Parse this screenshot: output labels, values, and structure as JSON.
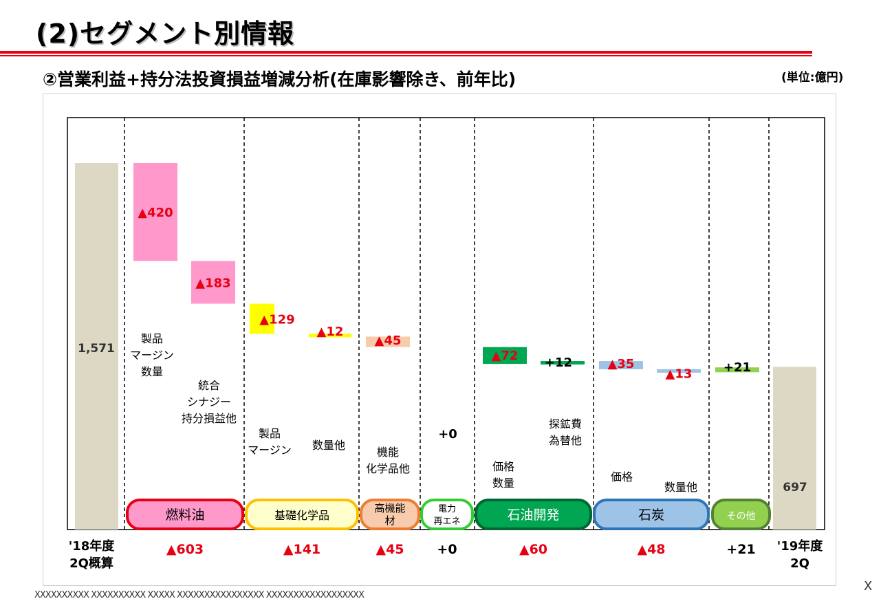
{
  "page": {
    "title": "(2)セグメント別情報",
    "subtitle": "②営業利益+持分法投資損益増減分析(在庫影響除き、前年比)",
    "unit": "(単位:億円)",
    "footer": "XXXXXXXXXX XXXXXXXXXX XXXXX XXXXXXXXXXXXXXXX XXXXXXXXXXXXXXXXXX",
    "page_mark": "X"
  },
  "colors": {
    "accent_red": "#e60012",
    "base_bar": "#ddd8c4",
    "fuel_oil": "#ff99cc",
    "basic_chem": "#ffff00",
    "functional": "#f8cbad",
    "petroleum_dev": "#00a651",
    "coal": "#9dc3e6",
    "other": "#92d050"
  },
  "chart_data": {
    "type": "waterfall",
    "ylim": [
      0,
      1700
    ],
    "start": {
      "label_line1": "'18年度",
      "label_line2": "2Q概算",
      "value": 1571,
      "value_label": "1,571"
    },
    "end": {
      "label_line1": "'19年度",
      "label_line2": "2Q",
      "value": 697,
      "value_label": "697"
    },
    "bars": [
      {
        "id": "fuel-margin",
        "value": -420,
        "label": "▲420",
        "color": "#ff99cc",
        "desc_lines": [
          "製品",
          "マージン",
          "数量"
        ]
      },
      {
        "id": "fuel-synergy",
        "value": -183,
        "label": "▲183",
        "color": "#ff99cc",
        "desc_lines": [
          "統合",
          "シナジー",
          "持分損益他"
        ]
      },
      {
        "id": "chem-margin",
        "value": -129,
        "label": "▲129",
        "color": "#ffff00",
        "desc_lines": [
          "製品",
          "マージン"
        ]
      },
      {
        "id": "chem-volume",
        "value": -12,
        "label": "▲12",
        "color": "#ffff00",
        "desc_lines": [
          "数量他"
        ]
      },
      {
        "id": "func-chem",
        "value": -45,
        "label": "▲45",
        "color": "#f8cbad",
        "desc_lines": [
          "機能",
          "化学品他"
        ]
      },
      {
        "id": "power",
        "value": 0,
        "label": "+0",
        "color": "#ffffff",
        "desc_lines": []
      },
      {
        "id": "petro-price",
        "value": -72,
        "label": "▲72",
        "color": "#00a651",
        "desc_lines": [
          "価格",
          "数量"
        ]
      },
      {
        "id": "petro-explore",
        "value": 12,
        "label": "+12",
        "color": "#00a651",
        "desc_lines": [
          "探鉱費",
          "為替他"
        ]
      },
      {
        "id": "coal-price",
        "value": -35,
        "label": "▲35",
        "color": "#9dc3e6",
        "desc_lines": [
          "価格"
        ]
      },
      {
        "id": "coal-volume",
        "value": -13,
        "label": "▲13",
        "color": "#9dc3e6",
        "desc_lines": [
          "数量他"
        ]
      },
      {
        "id": "other",
        "value": 21,
        "label": "+21",
        "color": "#92d050",
        "desc_lines": []
      }
    ],
    "segments": [
      {
        "name": "燃料油",
        "total": "▲603",
        "fill": "#ff99cc",
        "stroke": "#e60012"
      },
      {
        "name": "基礎化学品",
        "total": "▲141",
        "fill": "#ffffcc",
        "stroke": "#ffc000"
      },
      {
        "name": "高機能材",
        "name_lines": [
          "高機能",
          "材"
        ],
        "total": "▲45",
        "fill": "#f8cbad",
        "stroke": "#ed7d31"
      },
      {
        "name": "電力再エネ",
        "name_lines": [
          "電力",
          "再エネ"
        ],
        "total": "+0",
        "fill": "#ffffff",
        "stroke": "#33cc33"
      },
      {
        "name": "石油開発",
        "total": "▲60",
        "fill": "#00a651",
        "stroke": "#006633"
      },
      {
        "name": "石炭",
        "total": "▲48",
        "fill": "#9dc3e6",
        "stroke": "#2e75b6"
      },
      {
        "name": "その他",
        "total": "+21",
        "fill": "#92d050",
        "stroke": "#548235"
      }
    ]
  }
}
